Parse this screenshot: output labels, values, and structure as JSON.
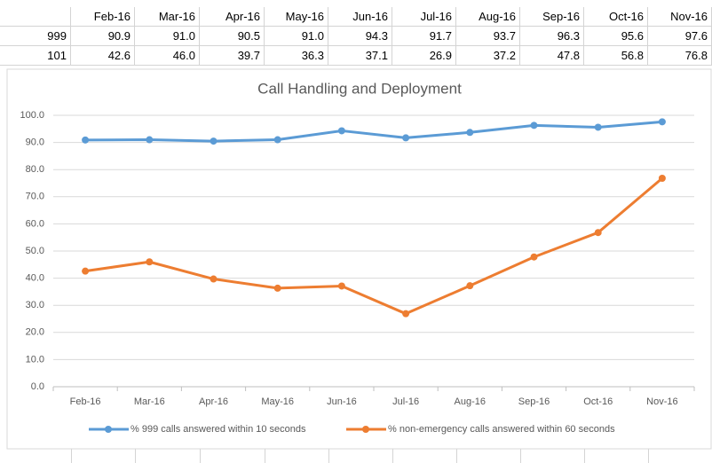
{
  "table": {
    "rows": [
      {
        "label": "999",
        "values": [
          "90.9",
          "91.0",
          "90.5",
          "91.0",
          "94.3",
          "91.7",
          "93.7",
          "96.3",
          "95.6",
          "97.6"
        ]
      },
      {
        "label": "101",
        "values": [
          "42.6",
          "46.0",
          "39.7",
          "36.3",
          "37.1",
          "26.9",
          "37.2",
          "47.8",
          "56.8",
          "76.8"
        ]
      }
    ]
  },
  "chart_data": {
    "type": "line",
    "title": "Call Handling and Deployment",
    "categories": [
      "Feb-16",
      "Mar-16",
      "Apr-16",
      "May-16",
      "Jun-16",
      "Jul-16",
      "Aug-16",
      "Sep-16",
      "Oct-16",
      "Nov-16"
    ],
    "series": [
      {
        "name": "% 999 calls answered within 10 seconds",
        "color": "#5b9bd5",
        "values": [
          90.9,
          91.0,
          90.5,
          91.0,
          94.3,
          91.7,
          93.7,
          96.3,
          95.6,
          97.6
        ]
      },
      {
        "name": "% non-emergency calls answered within 60 seconds",
        "color": "#ed7d31",
        "values": [
          42.6,
          46.0,
          39.7,
          36.3,
          37.1,
          26.9,
          37.2,
          47.8,
          56.8,
          76.8
        ]
      }
    ],
    "ylim": [
      0,
      100
    ],
    "yticks": [
      {
        "value": 0,
        "label": "0.0"
      },
      {
        "value": 10,
        "label": "10.0"
      },
      {
        "value": 20,
        "label": "20.0"
      },
      {
        "value": 30,
        "label": "30.0"
      },
      {
        "value": 40,
        "label": "40.0"
      },
      {
        "value": 50,
        "label": "50.0"
      },
      {
        "value": 60,
        "label": "60.0"
      },
      {
        "value": 70,
        "label": "70.0"
      },
      {
        "value": 80,
        "label": "80.0"
      },
      {
        "value": 90,
        "label": "90.0"
      },
      {
        "value": 100,
        "label": "100.0"
      }
    ],
    "grid": true,
    "legend": "bottom"
  }
}
